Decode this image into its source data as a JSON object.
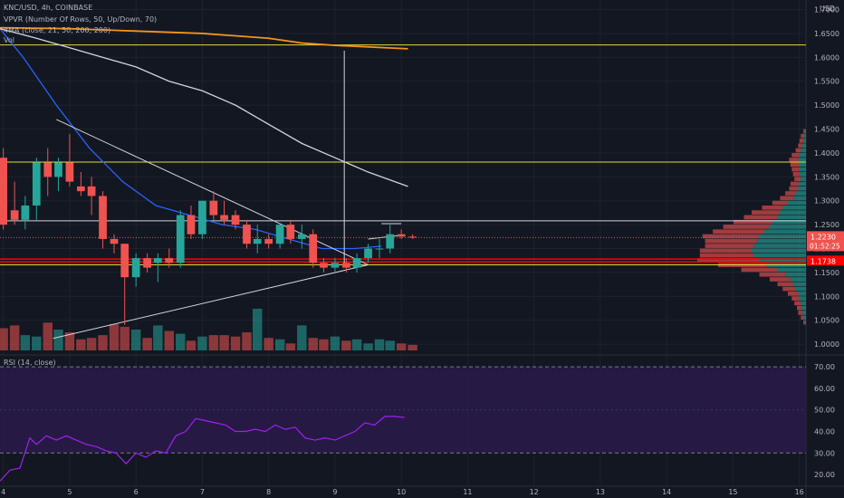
{
  "legend": {
    "symbol": "KNC/USD, 4h, COINBASE",
    "vpvr": "VPVR (Number Of Rows, 50, Up/Down, 70)",
    "ma": "4MA (close, 21, 50, 200, 200)",
    "vol": "Vol",
    "rsi": "RSI (14, close)"
  },
  "currency": "USD",
  "colors": {
    "background": "#131722",
    "up": "#26a69a",
    "down": "#ef5350",
    "ma21": "#2962ff",
    "ma50": "#d1d4dc",
    "ma200": "#f7931a",
    "level_yellow": "#e0d83a",
    "level_red": "#ff0000",
    "rsi_line": "#a020f0",
    "rsi_band": "#2a1a4a"
  },
  "price_labels": {
    "last": "1.2230",
    "countdown": "01:52:25",
    "level": "1.1738"
  },
  "chart_data": {
    "type": "candlestick",
    "x_ticks": [
      "4",
      "5",
      "6",
      "7",
      "8",
      "9",
      "10",
      "11",
      "12",
      "13",
      "14",
      "15",
      "16"
    ],
    "price_ticks": [
      "1.7000",
      "1.6500",
      "1.6000",
      "1.5500",
      "1.5000",
      "1.4500",
      "1.4000",
      "1.3500",
      "1.3000",
      "1.2500",
      "1.2000",
      "1.1500",
      "1.1000",
      "1.0500",
      "1.0000"
    ],
    "ylim": [
      0.985,
      1.72
    ],
    "x_range": [
      3.95,
      16.1
    ],
    "candles": [
      {
        "t": 4.0,
        "o": 1.39,
        "h": 1.41,
        "l": 1.24,
        "c": 1.25,
        "v": 32
      },
      {
        "t": 4.17,
        "o": 1.28,
        "h": 1.34,
        "l": 1.25,
        "c": 1.26,
        "v": 36
      },
      {
        "t": 4.33,
        "o": 1.26,
        "h": 1.31,
        "l": 1.24,
        "c": 1.29,
        "v": 22
      },
      {
        "t": 4.5,
        "o": 1.29,
        "h": 1.39,
        "l": 1.26,
        "c": 1.38,
        "v": 20
      },
      {
        "t": 4.67,
        "o": 1.38,
        "h": 1.41,
        "l": 1.31,
        "c": 1.35,
        "v": 40
      },
      {
        "t": 4.83,
        "o": 1.35,
        "h": 1.39,
        "l": 1.32,
        "c": 1.38,
        "v": 30
      },
      {
        "t": 5.0,
        "o": 1.38,
        "h": 1.44,
        "l": 1.33,
        "c": 1.34,
        "v": 26
      },
      {
        "t": 5.17,
        "o": 1.33,
        "h": 1.36,
        "l": 1.31,
        "c": 1.32,
        "v": 16
      },
      {
        "t": 5.33,
        "o": 1.33,
        "h": 1.35,
        "l": 1.27,
        "c": 1.31,
        "v": 18
      },
      {
        "t": 5.5,
        "o": 1.31,
        "h": 1.32,
        "l": 1.2,
        "c": 1.22,
        "v": 22
      },
      {
        "t": 5.67,
        "o": 1.22,
        "h": 1.23,
        "l": 1.19,
        "c": 1.21,
        "v": 38
      },
      {
        "t": 5.83,
        "o": 1.21,
        "h": 1.21,
        "l": 1.04,
        "c": 1.14,
        "v": 34
      },
      {
        "t": 6.0,
        "o": 1.14,
        "h": 1.19,
        "l": 1.12,
        "c": 1.18,
        "v": 30
      },
      {
        "t": 6.17,
        "o": 1.18,
        "h": 1.19,
        "l": 1.15,
        "c": 1.16,
        "v": 18
      },
      {
        "t": 6.33,
        "o": 1.17,
        "h": 1.19,
        "l": 1.13,
        "c": 1.18,
        "v": 36
      },
      {
        "t": 6.5,
        "o": 1.18,
        "h": 1.2,
        "l": 1.16,
        "c": 1.17,
        "v": 28
      },
      {
        "t": 6.67,
        "o": 1.17,
        "h": 1.28,
        "l": 1.16,
        "c": 1.27,
        "v": 24
      },
      {
        "t": 6.83,
        "o": 1.27,
        "h": 1.29,
        "l": 1.22,
        "c": 1.23,
        "v": 14
      },
      {
        "t": 7.0,
        "o": 1.23,
        "h": 1.3,
        "l": 1.22,
        "c": 1.3,
        "v": 20
      },
      {
        "t": 7.17,
        "o": 1.3,
        "h": 1.32,
        "l": 1.26,
        "c": 1.27,
        "v": 22
      },
      {
        "t": 7.33,
        "o": 1.27,
        "h": 1.3,
        "l": 1.25,
        "c": 1.26,
        "v": 22
      },
      {
        "t": 7.5,
        "o": 1.27,
        "h": 1.28,
        "l": 1.24,
        "c": 1.25,
        "v": 20
      },
      {
        "t": 7.67,
        "o": 1.25,
        "h": 1.26,
        "l": 1.2,
        "c": 1.21,
        "v": 26
      },
      {
        "t": 7.83,
        "o": 1.21,
        "h": 1.25,
        "l": 1.19,
        "c": 1.22,
        "v": 60
      },
      {
        "t": 8.0,
        "o": 1.22,
        "h": 1.23,
        "l": 1.2,
        "c": 1.21,
        "v": 18
      },
      {
        "t": 8.17,
        "o": 1.21,
        "h": 1.25,
        "l": 1.2,
        "c": 1.25,
        "v": 16
      },
      {
        "t": 8.33,
        "o": 1.25,
        "h": 1.26,
        "l": 1.21,
        "c": 1.22,
        "v": 10
      },
      {
        "t": 8.5,
        "o": 1.22,
        "h": 1.25,
        "l": 1.2,
        "c": 1.23,
        "v": 36
      },
      {
        "t": 8.67,
        "o": 1.23,
        "h": 1.24,
        "l": 1.16,
        "c": 1.17,
        "v": 18
      },
      {
        "t": 8.83,
        "o": 1.17,
        "h": 1.18,
        "l": 1.15,
        "c": 1.16,
        "v": 16
      },
      {
        "t": 9.0,
        "o": 1.16,
        "h": 1.18,
        "l": 1.15,
        "c": 1.17,
        "v": 20
      },
      {
        "t": 9.17,
        "o": 1.17,
        "h": 1.18,
        "l": 1.15,
        "c": 1.16,
        "v": 14
      },
      {
        "t": 9.33,
        "o": 1.16,
        "h": 1.19,
        "l": 1.15,
        "c": 1.18,
        "v": 16
      },
      {
        "t": 9.5,
        "o": 1.18,
        "h": 1.21,
        "l": 1.17,
        "c": 1.2,
        "v": 10
      },
      {
        "t": 9.67,
        "o": 1.2,
        "h": 1.22,
        "l": 1.18,
        "c": 1.2,
        "v": 16
      },
      {
        "t": 9.83,
        "o": 1.2,
        "h": 1.25,
        "l": 1.19,
        "c": 1.23,
        "v": 14
      },
      {
        "t": 10.0,
        "o": 1.23,
        "h": 1.24,
        "l": 1.22,
        "c": 1.225,
        "v": 10
      },
      {
        "t": 10.17,
        "o": 1.225,
        "h": 1.23,
        "l": 1.22,
        "c": 1.223,
        "v": 8
      }
    ],
    "moving_averages": [
      {
        "color": "#2962ff",
        "points": [
          [
            3.95,
            1.66
          ],
          [
            4.3,
            1.6
          ],
          [
            4.8,
            1.5
          ],
          [
            5.3,
            1.41
          ],
          [
            5.8,
            1.34
          ],
          [
            6.3,
            1.29
          ],
          [
            6.8,
            1.27
          ],
          [
            7.3,
            1.25
          ],
          [
            7.8,
            1.24
          ],
          [
            8.3,
            1.22
          ],
          [
            8.8,
            1.2
          ],
          [
            9.3,
            1.2
          ],
          [
            9.7,
            1.205
          ]
        ]
      },
      {
        "color": "#d1d4dc",
        "points": [
          [
            3.95,
            1.66
          ],
          [
            4.5,
            1.64
          ],
          [
            5.0,
            1.62
          ],
          [
            5.5,
            1.6
          ],
          [
            6.0,
            1.58
          ],
          [
            6.5,
            1.55
          ],
          [
            7.0,
            1.53
          ],
          [
            7.5,
            1.5
          ],
          [
            8.0,
            1.46
          ],
          [
            8.5,
            1.42
          ],
          [
            9.0,
            1.39
          ],
          [
            9.5,
            1.36
          ],
          [
            10.1,
            1.33
          ]
        ]
      },
      {
        "color": "#f7931a",
        "points": [
          [
            3.95,
            1.662
          ],
          [
            5.0,
            1.66
          ],
          [
            6.0,
            1.655
          ],
          [
            7.0,
            1.65
          ],
          [
            8.0,
            1.64
          ],
          [
            8.5,
            1.63
          ],
          [
            9.0,
            1.625
          ],
          [
            10.1,
            1.618
          ]
        ]
      }
    ],
    "horizontal_levels": [
      {
        "price": 1.626,
        "color": "#e0d83a",
        "width": 1
      },
      {
        "price": 1.381,
        "color": "#e0d83a",
        "width": 1
      },
      {
        "price": 1.258,
        "color": "#d1d4dc",
        "width": 1
      },
      {
        "price": 1.178,
        "color": "#ff0000",
        "width": 1.5
      },
      {
        "price": 1.172,
        "color": "#ff0000",
        "width": 1.5
      },
      {
        "price": 1.166,
        "color": "#e0d83a",
        "width": 1
      }
    ],
    "trendlines": [
      {
        "from": [
          4.8,
          1.47
        ],
        "to": [
          9.5,
          1.166
        ],
        "color": "#d1d4dc"
      },
      {
        "from": [
          4.75,
          1.012
        ],
        "to": [
          9.5,
          1.166
        ],
        "color": "#d1d4dc"
      },
      {
        "from": [
          9.14,
          1.614
        ],
        "to": [
          9.14,
          1.17
        ],
        "color": "#d1d4dc"
      },
      {
        "from": [
          9.5,
          1.22
        ],
        "to": [
          10.0,
          1.228
        ],
        "color": "#d1d4dc"
      },
      {
        "from": [
          9.7,
          1.252
        ],
        "to": [
          10.0,
          1.252
        ],
        "color": "#d1d4dc"
      }
    ],
    "volume_profile": {
      "rows": [
        {
          "price": 1.445,
          "up": 1,
          "down": 1
        },
        {
          "price": 1.435,
          "up": 2,
          "down": 2
        },
        {
          "price": 1.425,
          "up": 2,
          "down": 3
        },
        {
          "price": 1.415,
          "up": 3,
          "down": 3
        },
        {
          "price": 1.405,
          "up": 4,
          "down": 4
        },
        {
          "price": 1.395,
          "up": 5,
          "down": 6
        },
        {
          "price": 1.385,
          "up": 6,
          "down": 7
        },
        {
          "price": 1.375,
          "up": 5,
          "down": 7
        },
        {
          "price": 1.365,
          "up": 5,
          "down": 6
        },
        {
          "price": 1.355,
          "up": 5,
          "down": 5
        },
        {
          "price": 1.345,
          "up": 4,
          "down": 5
        },
        {
          "price": 1.335,
          "up": 6,
          "down": 6
        },
        {
          "price": 1.325,
          "up": 6,
          "down": 7
        },
        {
          "price": 1.315,
          "up": 8,
          "down": 8
        },
        {
          "price": 1.305,
          "up": 10,
          "down": 10
        },
        {
          "price": 1.295,
          "up": 14,
          "down": 12
        },
        {
          "price": 1.285,
          "up": 18,
          "down": 16
        },
        {
          "price": 1.275,
          "up": 20,
          "down": 22
        },
        {
          "price": 1.265,
          "up": 22,
          "down": 26
        },
        {
          "price": 1.255,
          "up": 26,
          "down": 30
        },
        {
          "price": 1.245,
          "up": 28,
          "down": 36
        },
        {
          "price": 1.235,
          "up": 32,
          "down": 40
        },
        {
          "price": 1.225,
          "up": 36,
          "down": 44
        },
        {
          "price": 1.215,
          "up": 38,
          "down": 40
        },
        {
          "price": 1.205,
          "up": 40,
          "down": 38
        },
        {
          "price": 1.195,
          "up": 42,
          "down": 40
        },
        {
          "price": 1.185,
          "up": 40,
          "down": 42
        },
        {
          "price": 1.175,
          "up": 36,
          "down": 48
        },
        {
          "price": 1.165,
          "up": 30,
          "down": 38
        },
        {
          "price": 1.155,
          "up": 22,
          "down": 28
        },
        {
          "price": 1.145,
          "up": 16,
          "down": 20
        },
        {
          "price": 1.135,
          "up": 12,
          "down": 16
        },
        {
          "price": 1.125,
          "up": 10,
          "down": 12
        },
        {
          "price": 1.115,
          "up": 8,
          "down": 10
        },
        {
          "price": 1.105,
          "up": 6,
          "down": 8
        },
        {
          "price": 1.095,
          "up": 5,
          "down": 6
        },
        {
          "price": 1.085,
          "up": 4,
          "down": 5
        },
        {
          "price": 1.075,
          "up": 3,
          "down": 4
        },
        {
          "price": 1.065,
          "up": 3,
          "down": 3
        },
        {
          "price": 1.055,
          "up": 2,
          "down": 2
        },
        {
          "price": 1.045,
          "up": 1,
          "down": 1
        }
      ]
    },
    "rsi": {
      "ticks": [
        "70.00",
        "60.00",
        "50.00",
        "40.00",
        "30.00",
        "20.00"
      ],
      "ylim": [
        15,
        73
      ],
      "band": [
        30,
        70
      ],
      "points": [
        [
          3.95,
          17
        ],
        [
          4.1,
          22
        ],
        [
          4.25,
          23
        ],
        [
          4.4,
          37
        ],
        [
          4.5,
          34
        ],
        [
          4.65,
          38
        ],
        [
          4.8,
          36
        ],
        [
          4.95,
          38
        ],
        [
          5.1,
          36
        ],
        [
          5.25,
          34
        ],
        [
          5.4,
          33
        ],
        [
          5.55,
          31
        ],
        [
          5.7,
          30
        ],
        [
          5.85,
          25
        ],
        [
          6.0,
          30
        ],
        [
          6.15,
          28
        ],
        [
          6.3,
          31
        ],
        [
          6.45,
          30
        ],
        [
          6.6,
          38
        ],
        [
          6.75,
          40
        ],
        [
          6.9,
          46
        ],
        [
          7.05,
          45
        ],
        [
          7.2,
          44
        ],
        [
          7.35,
          43
        ],
        [
          7.5,
          40
        ],
        [
          7.65,
          40
        ],
        [
          7.8,
          41
        ],
        [
          7.95,
          40
        ],
        [
          8.1,
          43
        ],
        [
          8.25,
          41
        ],
        [
          8.4,
          42
        ],
        [
          8.55,
          37
        ],
        [
          8.7,
          36
        ],
        [
          8.85,
          37
        ],
        [
          9.0,
          36
        ],
        [
          9.15,
          38
        ],
        [
          9.3,
          40
        ],
        [
          9.45,
          44
        ],
        [
          9.6,
          43
        ],
        [
          9.75,
          47
        ],
        [
          9.9,
          47
        ],
        [
          10.05,
          46.5
        ]
      ]
    }
  }
}
